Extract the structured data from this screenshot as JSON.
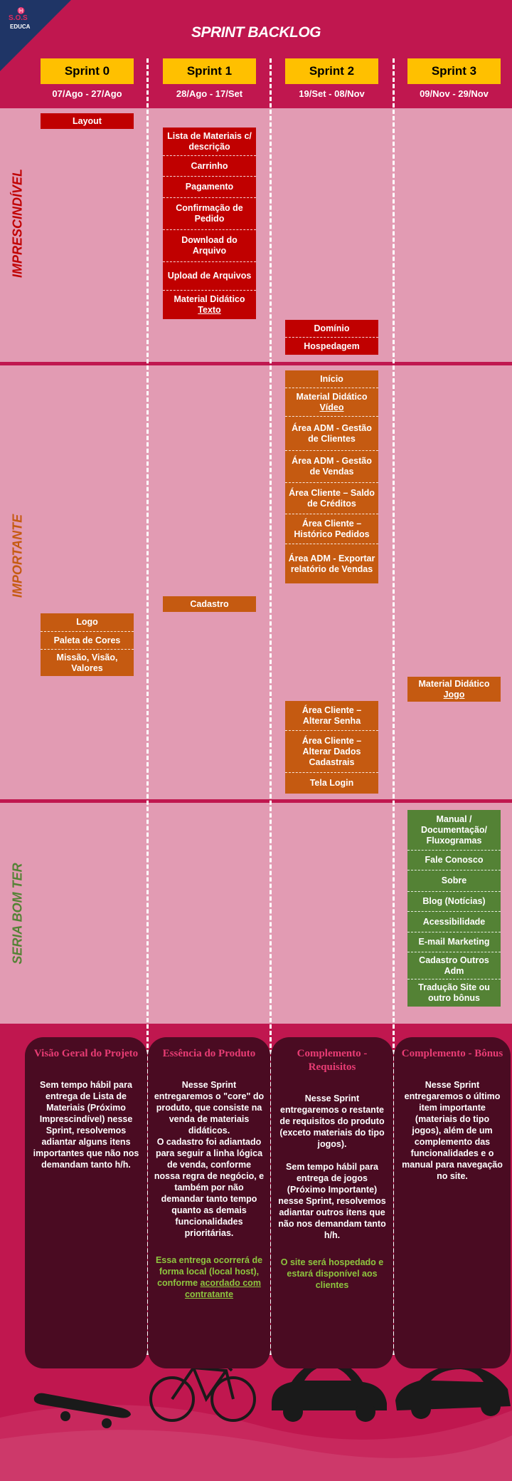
{
  "logo": {
    "text": "S.O.S",
    "sub": "EDUCA",
    "hat": "♓"
  },
  "title": "SPRINT BACKLOG",
  "sprints": [
    {
      "name": "Sprint 0",
      "dates": "07/Ago - 27/Ago"
    },
    {
      "name": "Sprint 1",
      "dates": "28/Ago - 17/Set"
    },
    {
      "name": "Sprint 2",
      "dates": "19/Set - 08/Nov"
    },
    {
      "name": "Sprint 3",
      "dates": "09/Nov - 29/Nov"
    }
  ],
  "rows": {
    "imprescindivel": "IMPRESCINDÍVEL",
    "importante": "IMPORTANTE",
    "seria_bom_ter": "SERIA BOM TER"
  },
  "colors": {
    "red": "#c00000",
    "orange": "#c55a11",
    "green": "#548235",
    "yellow": "#ffc000",
    "magenta": "#c0174f",
    "pink": "#e29bb3"
  },
  "cards": {
    "s0_layout": [
      "Layout"
    ],
    "s1_core": [
      "Lista de Materiais c/ descrição",
      "Carrinho",
      "Pagamento",
      "Confirmação de Pedido",
      "Download do Arquivo",
      "Upload de Arquivos",
      "Material Didático",
      "Texto"
    ],
    "s2_infra": [
      "Domínio",
      "Hospedagem"
    ],
    "s2_imp": [
      "Início",
      "Material Didático",
      "Vídeo",
      "Área ADM - Gestão de Clientes",
      "Área ADM - Gestão de Vendas",
      "Área Cliente – Saldo de Créditos",
      "Área Cliente – Histórico Pedidos",
      "Área ADM - Exportar relatório de Vendas"
    ],
    "s1_cadastro": [
      "Cadastro"
    ],
    "s0_brand": [
      "Logo",
      "Paleta de Cores",
      "Missão, Visão, Valores"
    ],
    "s3_jogo": [
      "Material Didático",
      "Jogo"
    ],
    "s2_login": [
      "Área Cliente – Alterar Senha",
      "Área Cliente – Alterar Dados Cadastrais",
      "Tela Login"
    ],
    "s3_bonus": [
      "Manual / Documentação/ Fluxogramas",
      "Fale Conosco",
      "Sobre",
      "Blog (Notícias)",
      "Acessibilidade",
      "E-mail Marketing",
      "Cadastro Outros Adm",
      "Tradução Site ou outro bônus"
    ]
  },
  "summaries": [
    {
      "title": "Visão Geral do Projeto",
      "text": "Sem tempo hábil para entrega de Lista de Materiais (Próximo Imprescindível) nesse Sprint, resolvemos adiantar alguns itens importantes que não nos demandam tanto h/h."
    },
    {
      "title": "Essência do Produto",
      "text": "Nesse Sprint entregaremos o \"core\" do produto, que consiste na venda de materiais didáticos.\nO cadastro foi adiantado para seguir a linha lógica de venda, conforme nossa regra de negócio, e também por não demandar tanto tempo quanto as demais funcionalidades prioritárias.",
      "green": "Essa entrega ocorrerá de forma local (local host), conforme",
      "green_u": "acordado com contratante"
    },
    {
      "title": "Complemento - Requisitos",
      "text": "Nesse Sprint entregaremos o restante de requisitos do produto (exceto materiais do tipo jogos).\n\nSem tempo hábil para entrega de jogos (Próximo Importante) nesse Sprint, resolvemos adiantar outros itens que não nos demandam tanto h/h.",
      "green": "O site será hospedado e estará disponível aos clientes"
    },
    {
      "title": "Complemento - Bônus",
      "text": "Nesse Sprint entregaremos o último item importante (materiais do tipo jogos), além de um complemento das funcionalidades e o manual para navegação no site."
    }
  ]
}
